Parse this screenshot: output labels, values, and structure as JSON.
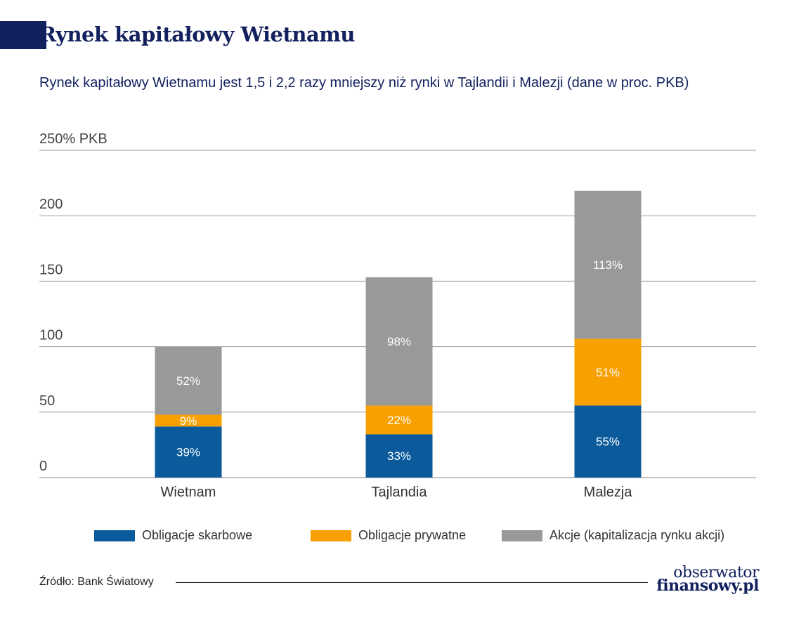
{
  "header": {
    "title": "Rynek kapitałowy Wietnamu",
    "subtitle": "Rynek kapitałowy Wietnamu jest 1,5 i 2,2 razy mniejszy niż rynki w Tajlandii i Malezji (dane w proc. PKB)"
  },
  "colors": {
    "brand": "#12215e",
    "series": [
      "#0a5a9c",
      "#f7a000",
      "#999999"
    ],
    "grid": "#9a9a9a"
  },
  "chart_data": {
    "type": "bar",
    "stacked": true,
    "categories": [
      "Wietnam",
      "Tajlandia",
      "Malezja"
    ],
    "series": [
      {
        "name": "Obligacje skarbowe",
        "values": [
          39,
          33,
          55
        ],
        "labels": [
          "39%",
          "33%",
          "55%"
        ]
      },
      {
        "name": "Obligacje prywatne",
        "values": [
          9,
          22,
          51
        ],
        "labels": [
          "9%",
          "22%",
          "51%"
        ]
      },
      {
        "name": "Akcje (kapitalizacja rynku akcji)",
        "values": [
          52,
          98,
          113
        ],
        "labels": [
          "52%",
          "98%",
          "113%"
        ]
      }
    ],
    "ylim": [
      0,
      250
    ],
    "yticks": [
      0,
      50,
      100,
      150,
      200,
      250
    ],
    "ytick_labels": [
      "0",
      "50",
      "100",
      "150",
      "200",
      "250% PKB"
    ],
    "grid": true,
    "legend": "bottom"
  },
  "footer": {
    "source": "Źródło: Bank Światowy",
    "logo_line1": "obserwator",
    "logo_line2": "finansowy.pl"
  }
}
